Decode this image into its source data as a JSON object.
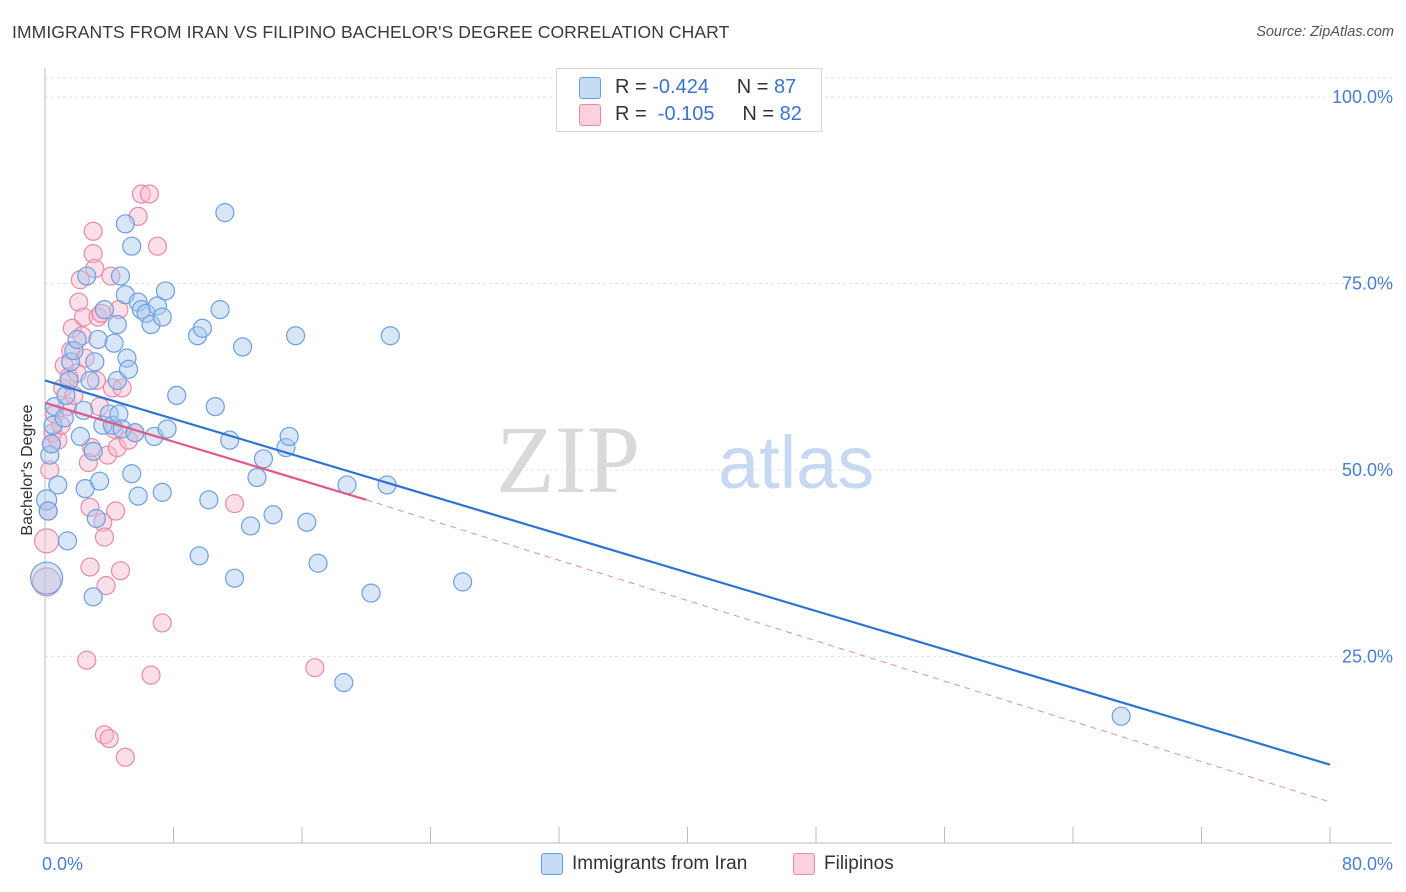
{
  "header": {
    "title": "IMMIGRANTS FROM IRAN VS FILIPINO BACHELOR'S DEGREE CORRELATION CHART",
    "source": "Source: ZipAtlas.com"
  },
  "watermark": {
    "zip": "ZIP",
    "atlas": "atlas"
  },
  "legend": {
    "rows": [
      {
        "r_label": "R =",
        "r_value": "-0.424",
        "n_label": "N =",
        "n_value": "87"
      },
      {
        "r_label": "R =",
        "r_value": "-0.105",
        "n_label": "N =",
        "n_value": "82"
      }
    ],
    "series_labels": [
      "Immigrants from Iran",
      "Filipinos"
    ]
  },
  "colors": {
    "blue_fill": "#a9c8f0",
    "blue_stroke": "#6d9fe0",
    "blue_line": "#2f73d0",
    "pink_fill": "#f7b9cc",
    "pink_stroke": "#e88aa8",
    "pink_line": "#e05a86",
    "axis_label": "#4a7fd0"
  },
  "chart_data": {
    "type": "scatter",
    "title": "IMMIGRANTS FROM IRAN VS FILIPINO BACHELOR'S DEGREE CORRELATION CHART",
    "xlabel": "",
    "ylabel": "Bachelor's Degree",
    "xlim": [
      0,
      80
    ],
    "ylim": [
      0,
      105
    ],
    "x_tick_labels": [
      "0.0%",
      "80.0%"
    ],
    "y_ticks": [
      25,
      50,
      75,
      100
    ],
    "y_tick_labels": [
      "25.0%",
      "50.0%",
      "75.0%",
      "100.0%"
    ],
    "grid": true,
    "legend_position": "top-center",
    "series": [
      {
        "name": "Immigrants from Iran",
        "color": "#6d9fe0",
        "trend": {
          "x": [
            0,
            80
          ],
          "y": [
            62,
            10.5
          ],
          "dashed_extension": false
        },
        "points": [
          [
            0.1,
            35.5,
            16
          ],
          [
            0.1,
            46,
            10
          ],
          [
            0.2,
            44.5,
            9
          ],
          [
            0.3,
            52,
            9
          ],
          [
            0.4,
            53.5,
            9
          ],
          [
            0.5,
            56,
            9
          ],
          [
            0.6,
            58.5,
            9
          ],
          [
            0.8,
            48,
            9
          ],
          [
            1.2,
            57,
            9
          ],
          [
            1.3,
            60,
            9
          ],
          [
            1.4,
            40.5,
            9
          ],
          [
            1.5,
            62,
            9
          ],
          [
            1.6,
            64.5,
            9
          ],
          [
            1.8,
            66,
            9
          ],
          [
            2.0,
            67.5,
            9
          ],
          [
            2.2,
            54.5,
            9
          ],
          [
            2.4,
            58,
            9
          ],
          [
            2.5,
            47.5,
            9
          ],
          [
            2.6,
            76,
            9
          ],
          [
            2.8,
            62,
            9
          ],
          [
            3.0,
            52.5,
            9
          ],
          [
            3.0,
            33,
            9
          ],
          [
            3.1,
            64.5,
            9
          ],
          [
            3.2,
            43.5,
            9
          ],
          [
            3.3,
            67.5,
            9
          ],
          [
            3.4,
            48.5,
            9
          ],
          [
            3.6,
            56,
            9
          ],
          [
            3.7,
            71.5,
            9
          ],
          [
            4.0,
            57.5,
            9
          ],
          [
            4.2,
            56,
            9
          ],
          [
            4.3,
            67,
            9
          ],
          [
            4.5,
            69.5,
            9
          ],
          [
            4.5,
            62,
            9
          ],
          [
            4.6,
            57.5,
            9
          ],
          [
            4.7,
            76,
            9
          ],
          [
            4.8,
            55.5,
            9
          ],
          [
            5.0,
            73.5,
            9
          ],
          [
            5.0,
            83,
            9
          ],
          [
            5.1,
            65,
            9
          ],
          [
            5.2,
            63.5,
            9
          ],
          [
            5.4,
            80,
            9
          ],
          [
            5.4,
            49.5,
            9
          ],
          [
            5.6,
            55,
            9
          ],
          [
            5.8,
            72.5,
            9
          ],
          [
            5.8,
            46.5,
            9
          ],
          [
            6.0,
            71.5,
            9
          ],
          [
            6.3,
            71,
            9
          ],
          [
            6.6,
            69.5,
            9
          ],
          [
            6.8,
            54.5,
            9
          ],
          [
            7.0,
            72,
            9
          ],
          [
            7.3,
            70.5,
            9
          ],
          [
            7.3,
            47,
            9
          ],
          [
            7.5,
            74,
            9
          ],
          [
            7.6,
            55.5,
            9
          ],
          [
            8.2,
            60,
            9
          ],
          [
            9.5,
            68,
            9
          ],
          [
            9.6,
            38.5,
            9
          ],
          [
            9.8,
            69,
            9
          ],
          [
            10.2,
            46,
            9
          ],
          [
            10.6,
            58.5,
            9
          ],
          [
            10.9,
            71.5,
            9
          ],
          [
            11.2,
            84.5,
            9
          ],
          [
            11.5,
            54,
            9
          ],
          [
            11.8,
            35.5,
            9
          ],
          [
            12.3,
            66.5,
            9
          ],
          [
            12.8,
            42.5,
            9
          ],
          [
            13.2,
            49,
            9
          ],
          [
            13.6,
            51.5,
            9
          ],
          [
            14.2,
            44,
            9
          ],
          [
            15.0,
            53,
            9
          ],
          [
            15.2,
            54.5,
            9
          ],
          [
            15.6,
            68,
            9
          ],
          [
            16.3,
            43,
            9
          ],
          [
            17.0,
            37.5,
            9
          ],
          [
            18.6,
            21.5,
            9
          ],
          [
            18.8,
            48,
            9
          ],
          [
            20.3,
            33.5,
            9
          ],
          [
            21.3,
            48,
            9
          ],
          [
            21.5,
            68,
            9
          ],
          [
            26.0,
            35,
            9
          ],
          [
            67.0,
            17,
            9
          ]
        ]
      },
      {
        "name": "Filipinos",
        "color": "#e88aa8",
        "trend": {
          "x": [
            0,
            20
          ],
          "y": [
            59,
            46
          ],
          "dashed_extension": true,
          "dashed_to": [
            80,
            5.5
          ]
        },
        "points": [
          [
            0.1,
            35,
            14
          ],
          [
            0.1,
            40.5,
            12
          ],
          [
            0.2,
            44.5,
            9
          ],
          [
            0.3,
            50,
            9
          ],
          [
            0.4,
            53.5,
            9
          ],
          [
            0.5,
            55,
            9
          ],
          [
            0.6,
            57.5,
            9
          ],
          [
            0.8,
            54,
            9
          ],
          [
            1.0,
            56,
            9
          ],
          [
            1.1,
            61,
            9
          ],
          [
            1.2,
            64,
            9
          ],
          [
            1.4,
            58.5,
            9
          ],
          [
            1.5,
            62.5,
            9
          ],
          [
            1.6,
            66,
            9
          ],
          [
            1.7,
            69,
            9
          ],
          [
            1.8,
            60,
            9
          ],
          [
            2.0,
            63,
            9
          ],
          [
            2.1,
            72.5,
            9
          ],
          [
            2.2,
            75.5,
            9
          ],
          [
            2.3,
            68,
            9
          ],
          [
            2.4,
            70.5,
            9
          ],
          [
            2.5,
            65,
            9
          ],
          [
            2.6,
            24.5,
            9
          ],
          [
            2.7,
            51,
            9
          ],
          [
            2.8,
            45,
            9
          ],
          [
            2.8,
            37,
            9
          ],
          [
            2.9,
            53,
            9
          ],
          [
            3.0,
            82,
            9
          ],
          [
            3.0,
            79,
            9
          ],
          [
            3.1,
            77,
            9
          ],
          [
            3.2,
            62,
            9
          ],
          [
            3.3,
            70.5,
            9
          ],
          [
            3.4,
            58.5,
            9
          ],
          [
            3.5,
            71,
            9
          ],
          [
            3.6,
            43,
            9
          ],
          [
            3.7,
            41,
            9
          ],
          [
            3.7,
            14.5,
            9
          ],
          [
            3.8,
            34.5,
            9
          ],
          [
            3.9,
            52,
            9
          ],
          [
            4.0,
            14,
            9
          ],
          [
            4.1,
            76,
            9
          ],
          [
            4.2,
            61,
            9
          ],
          [
            4.3,
            55.5,
            9
          ],
          [
            4.4,
            44.5,
            9
          ],
          [
            4.5,
            53,
            9
          ],
          [
            4.6,
            71.5,
            9
          ],
          [
            4.7,
            36.5,
            9
          ],
          [
            4.8,
            61,
            9
          ],
          [
            5.0,
            11.5,
            9
          ],
          [
            5.2,
            54,
            9
          ],
          [
            5.6,
            55,
            9
          ],
          [
            5.8,
            84,
            9
          ],
          [
            6.0,
            87,
            9
          ],
          [
            6.5,
            87,
            9
          ],
          [
            6.6,
            22.5,
            9
          ],
          [
            7.0,
            80,
            9
          ],
          [
            7.3,
            29.5,
            9
          ],
          [
            11.8,
            45.5,
            9
          ],
          [
            16.8,
            23.5,
            9
          ]
        ]
      }
    ]
  }
}
